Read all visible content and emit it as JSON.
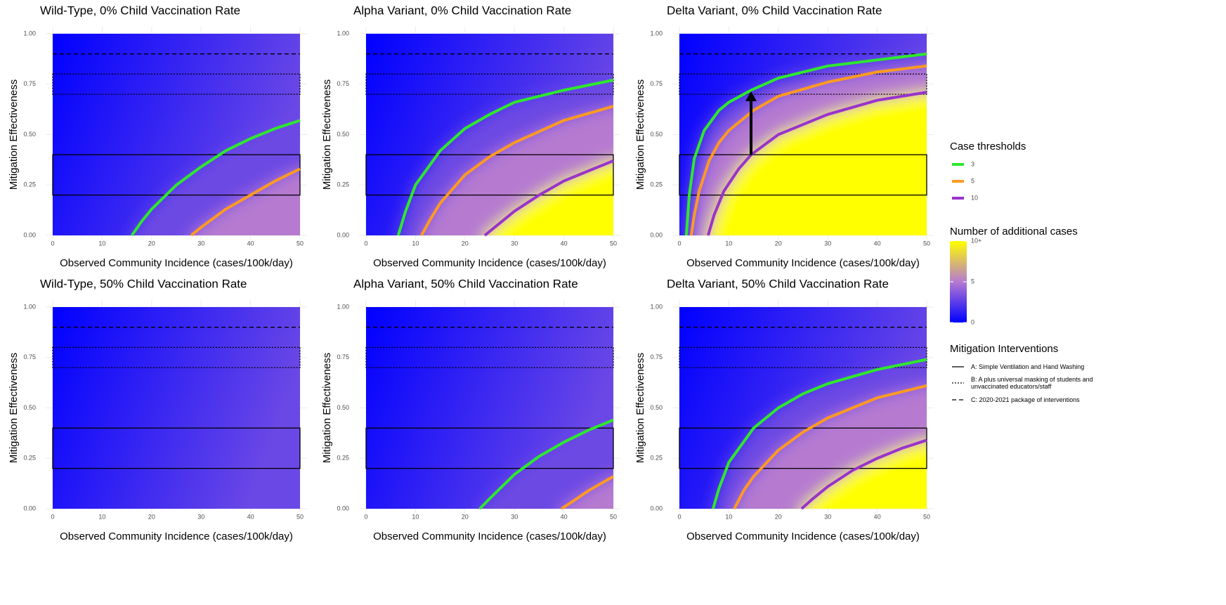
{
  "chart_data": [
    {
      "type": "contour",
      "title": "Wild-Type, 0% Child Vaccination Rate",
      "xlabel": "Observed Community Incidence (cases/100k/day)",
      "ylabel": "Mitigation Effectiveness",
      "xlim": [
        0,
        50
      ],
      "ylim": [
        0,
        1
      ],
      "xticks": [
        0,
        10,
        20,
        30,
        40,
        50
      ],
      "yticks": [
        {
          "value": 0,
          "label": "0.00"
        },
        {
          "value": 0.25,
          "label": "0.25"
        },
        {
          "value": 0.5,
          "label": "0.50"
        },
        {
          "value": 0.75,
          "label": "0.75"
        },
        {
          "value": 1,
          "label": "1.00"
        }
      ],
      "curves": [
        {
          "x": [
            16,
            18,
            20,
            25,
            30,
            35,
            40,
            45,
            50
          ],
          "values": [
            0,
            0.07,
            0.13,
            0.25,
            0.34,
            0.42,
            0.48,
            0.53,
            0.57
          ]
        },
        {
          "x": [
            28,
            30,
            35,
            40,
            45,
            50
          ],
          "values": [
            0,
            0.04,
            0.13,
            0.2,
            0.27,
            0.33
          ]
        }
      ]
    },
    {
      "type": "contour",
      "title": "Alpha Variant, 0% Child Vaccination Rate",
      "xlabel": "Observed Community Incidence (cases/100k/day)",
      "ylabel": "Mitigation Effectiveness",
      "xlim": [
        0,
        50
      ],
      "ylim": [
        0,
        1
      ],
      "xticks": [
        0,
        10,
        20,
        30,
        40,
        50
      ],
      "yticks": [
        {
          "value": 0,
          "label": "0.00"
        },
        {
          "value": 0.25,
          "label": "0.25"
        },
        {
          "value": 0.5,
          "label": "0.50"
        },
        {
          "value": 0.75,
          "label": "0.75"
        },
        {
          "value": 1,
          "label": "1.00"
        }
      ],
      "curves": [
        {
          "x": [
            6.5,
            8,
            10,
            15,
            20,
            25,
            30,
            40,
            50
          ],
          "values": [
            0,
            0.12,
            0.25,
            0.42,
            0.53,
            0.6,
            0.66,
            0.72,
            0.77
          ]
        },
        {
          "x": [
            11.2,
            13,
            15,
            20,
            25,
            30,
            40,
            50
          ],
          "values": [
            0,
            0.08,
            0.16,
            0.3,
            0.39,
            0.46,
            0.57,
            0.64
          ]
        },
        {
          "x": [
            24,
            27,
            30,
            35,
            40,
            45,
            50
          ],
          "values": [
            0,
            0.06,
            0.12,
            0.2,
            0.27,
            0.32,
            0.37
          ]
        }
      ]
    },
    {
      "type": "contour",
      "title": "Delta Variant, 0% Child Vaccination Rate",
      "xlabel": "Observed Community Incidence (cases/100k/day)",
      "ylabel": "Mitigation Effectiveness",
      "xlim": [
        0,
        50
      ],
      "ylim": [
        0,
        1
      ],
      "xticks": [
        0,
        10,
        20,
        30,
        40,
        50
      ],
      "yticks": [
        {
          "value": 0,
          "label": "0.00"
        },
        {
          "value": 0.25,
          "label": "0.25"
        },
        {
          "value": 0.5,
          "label": "0.50"
        },
        {
          "value": 0.75,
          "label": "0.75"
        },
        {
          "value": 1,
          "label": "1.00"
        }
      ],
      "curves": [
        {
          "x": [
            1.4,
            2,
            3,
            5,
            8,
            10,
            14.5,
            20,
            30,
            40,
            50
          ],
          "values": [
            0,
            0.2,
            0.38,
            0.52,
            0.62,
            0.66,
            0.72,
            0.78,
            0.84,
            0.87,
            0.9
          ]
        },
        {
          "x": [
            2.4,
            3,
            4,
            6,
            8,
            10,
            15,
            20,
            30,
            40,
            50
          ],
          "values": [
            0,
            0.1,
            0.22,
            0.37,
            0.46,
            0.52,
            0.62,
            0.69,
            0.76,
            0.81,
            0.84
          ]
        },
        {
          "x": [
            5.8,
            7,
            9,
            12,
            14.5,
            20,
            30,
            40,
            50
          ],
          "values": [
            0,
            0.1,
            0.22,
            0.33,
            0.4,
            0.5,
            0.6,
            0.67,
            0.71
          ]
        }
      ]
    },
    {
      "type": "contour",
      "title": "Wild-Type, 50% Child Vaccination Rate",
      "xlabel": "Observed Community Incidence (cases/100k/day)",
      "ylabel": "Mitigation Effectiveness",
      "xlim": [
        0,
        50
      ],
      "ylim": [
        0,
        1
      ],
      "xticks": [
        0,
        10,
        20,
        30,
        40,
        50
      ],
      "yticks": [
        {
          "value": 0,
          "label": "0.00"
        },
        {
          "value": 0.25,
          "label": "0.25"
        },
        {
          "value": 0.5,
          "label": "0.50"
        },
        {
          "value": 0.75,
          "label": "0.75"
        },
        {
          "value": 1,
          "label": "1.00"
        }
      ],
      "curves": []
    },
    {
      "type": "contour",
      "title": "Alpha Variant, 50% Child Vaccination Rate",
      "xlabel": "Observed Community Incidence (cases/100k/day)",
      "ylabel": "Mitigation Effectiveness",
      "xlim": [
        0,
        50
      ],
      "ylim": [
        0,
        1
      ],
      "xticks": [
        0,
        10,
        20,
        30,
        40,
        50
      ],
      "yticks": [
        {
          "value": 0,
          "label": "0.00"
        },
        {
          "value": 0.25,
          "label": "0.25"
        },
        {
          "value": 0.5,
          "label": "0.50"
        },
        {
          "value": 0.75,
          "label": "0.75"
        },
        {
          "value": 1,
          "label": "1.00"
        }
      ],
      "curves": [
        {
          "x": [
            23,
            25,
            30,
            35,
            40,
            45,
            50
          ],
          "values": [
            0,
            0.05,
            0.17,
            0.26,
            0.33,
            0.39,
            0.44
          ]
        },
        {
          "x": [
            39.5,
            42,
            45,
            50
          ],
          "values": [
            0,
            0.04,
            0.09,
            0.16
          ]
        }
      ]
    },
    {
      "type": "contour",
      "title": "Delta Variant, 50% Child Vaccination Rate",
      "xlabel": "Observed Community Incidence (cases/100k/day)",
      "ylabel": "Mitigation Effectiveness",
      "xlim": [
        0,
        50
      ],
      "ylim": [
        0,
        1
      ],
      "xticks": [
        0,
        10,
        20,
        30,
        40,
        50
      ],
      "yticks": [
        {
          "value": 0,
          "label": "0.00"
        },
        {
          "value": 0.25,
          "label": "0.25"
        },
        {
          "value": 0.5,
          "label": "0.50"
        },
        {
          "value": 0.75,
          "label": "0.75"
        },
        {
          "value": 1,
          "label": "1.00"
        }
      ],
      "curves": [
        {
          "x": [
            6.8,
            8,
            10,
            15,
            20,
            25,
            30,
            40,
            50
          ],
          "values": [
            0,
            0.1,
            0.23,
            0.4,
            0.5,
            0.57,
            0.62,
            0.69,
            0.74
          ]
        },
        {
          "x": [
            11.1,
            13,
            15,
            20,
            25,
            30,
            40,
            50
          ],
          "values": [
            0,
            0.09,
            0.16,
            0.29,
            0.38,
            0.45,
            0.55,
            0.61
          ]
        },
        {
          "x": [
            24.7,
            27,
            30,
            35,
            40,
            45,
            50
          ],
          "values": [
            0,
            0.05,
            0.11,
            0.19,
            0.25,
            0.3,
            0.34
          ]
        }
      ]
    }
  ],
  "thresholds": {
    "title": "Case thresholds",
    "series": [
      {
        "name": "3",
        "color": "#2ee82e"
      },
      {
        "name": "5",
        "color": "#ff9a22"
      },
      {
        "name": "10",
        "color": "#9933cc"
      }
    ]
  },
  "colorbar": {
    "title": "Number of additional cases",
    "lim": [
      0,
      10
    ],
    "ticks": [
      0,
      5,
      {
        "value": 10,
        "label": "10+"
      }
    ],
    "colors": [
      "#0000ff",
      "#b67ad0",
      "#ffff00"
    ]
  },
  "interventions": {
    "title": "Mitigation Interventions",
    "items": [
      {
        "name": "A: Simple Ventilation and Hand Washing",
        "style": "solid",
        "ylim": [
          0.2,
          0.4
        ]
      },
      {
        "name": "B: A plus universal masking of students and unvaccinated educators/staff",
        "style": "dotted",
        "ylim": [
          0.7,
          0.8
        ]
      },
      {
        "name": "C: 2020-2021 package of interventions",
        "style": "dashed",
        "y": 0.9
      }
    ]
  }
}
